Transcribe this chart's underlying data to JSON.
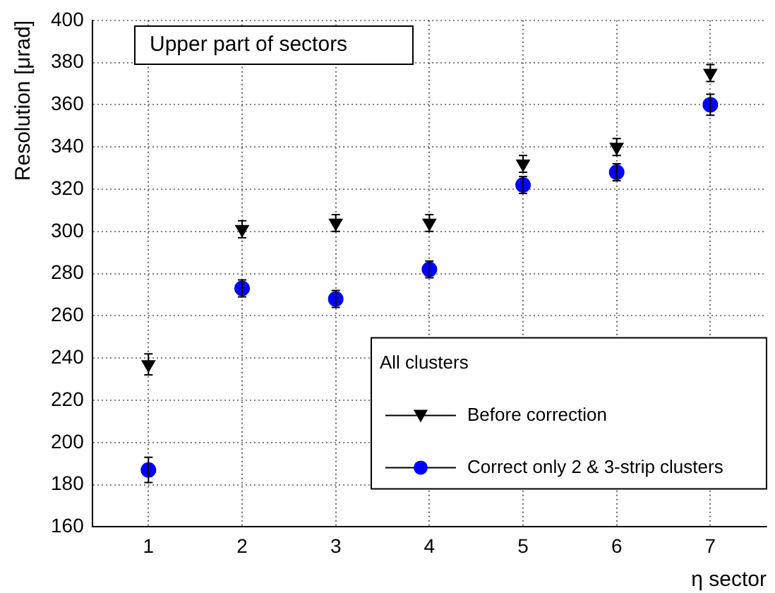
{
  "chart_data": {
    "type": "scatter",
    "xlabel": "η sector",
    "ylabel": "Resolution [μrad]",
    "legend_title": "All clusters",
    "annotations": [
      "Upper part of sectors"
    ],
    "x": [
      1,
      2,
      3,
      4,
      5,
      6,
      7
    ],
    "series": [
      {
        "name": "Before correction",
        "color": "#000000",
        "marker": "triangle",
        "values": [
          237,
          301,
          304,
          304,
          332,
          340,
          375
        ],
        "errors": [
          5,
          4,
          4,
          4,
          4,
          4,
          4
        ]
      },
      {
        "name": "Correct only 2 & 3-strip clusters",
        "color": "#0000ff",
        "marker": "circle",
        "values": [
          187,
          273,
          268,
          282,
          322,
          328,
          360
        ],
        "errors": [
          6,
          4,
          4,
          4,
          4,
          4,
          5
        ]
      }
    ],
    "xlim": [
      0.4,
      7.6
    ],
    "xticks": [
      1,
      2,
      3,
      4,
      5,
      6,
      7
    ],
    "ylim": [
      160,
      400
    ],
    "yticks": [
      160,
      180,
      200,
      220,
      240,
      260,
      280,
      300,
      320,
      340,
      360,
      380,
      400
    ],
    "grid": true,
    "legend": "bottom right"
  }
}
